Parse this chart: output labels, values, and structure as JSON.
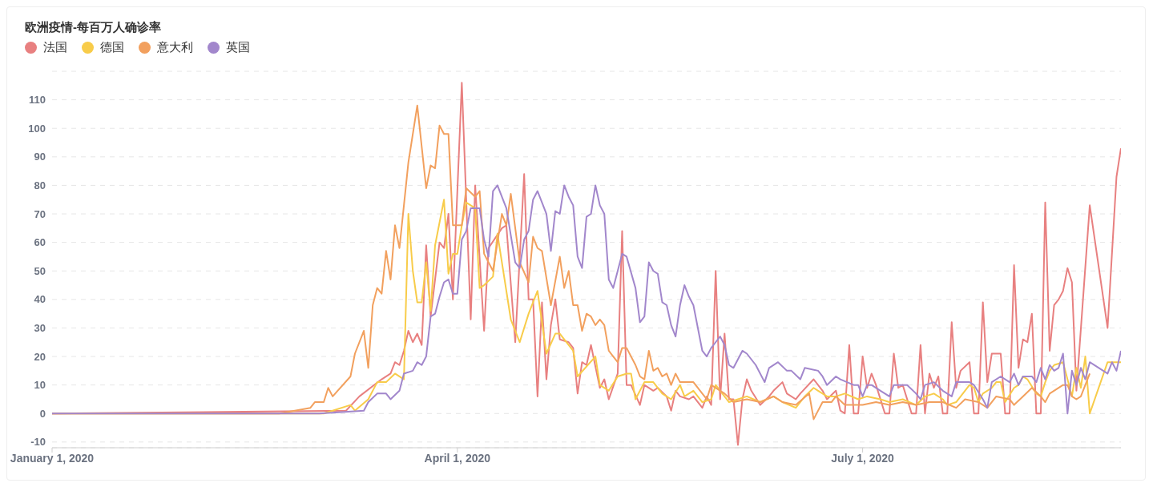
{
  "chart_data": {
    "type": "line",
    "title": "欧洲疫情-每百万人确诊率",
    "legend": "top left",
    "grid": "y",
    "marker": "none",
    "line_style": "solid",
    "xlim": [
      "2020-01-01",
      "2020-08-28"
    ],
    "xticks": [
      {
        "value": "2020-01-01",
        "label": "January 1, 2020"
      },
      {
        "value": "2020-04-01",
        "label": "April 1, 2020"
      },
      {
        "value": "2020-07-01",
        "label": "July 1, 2020"
      }
    ],
    "ylim": [
      -12,
      120
    ],
    "yticks": [
      -10,
      0,
      10,
      20,
      30,
      40,
      50,
      60,
      70,
      80,
      90,
      100,
      110
    ],
    "series": [
      {
        "name": "法国",
        "color": "#e88080",
        "x": [
          "2020-01-01",
          "2020-03-07",
          "2020-03-10",
          "2020-03-15",
          "2020-03-17",
          "2020-03-18",
          "2020-03-19",
          "2020-03-20",
          "2020-03-21",
          "2020-03-22",
          "2020-03-23",
          "2020-03-24",
          "2020-03-25",
          "2020-03-26",
          "2020-03-28",
          "2020-03-29",
          "2020-03-30",
          "2020-03-31",
          "2020-04-02",
          "2020-04-04",
          "2020-04-05",
          "2020-04-07",
          "2020-04-08",
          "2020-04-11",
          "2020-04-12",
          "2020-04-14",
          "2020-04-16",
          "2020-04-17",
          "2020-04-18",
          "2020-04-19",
          "2020-04-20",
          "2020-04-21",
          "2020-04-22",
          "2020-04-23",
          "2020-04-24",
          "2020-04-26",
          "2020-04-27",
          "2020-04-28",
          "2020-04-29",
          "2020-04-30",
          "2020-05-01",
          "2020-05-03",
          "2020-05-04",
          "2020-05-05",
          "2020-05-07",
          "2020-05-08",
          "2020-05-09",
          "2020-05-10",
          "2020-05-12",
          "2020-05-13",
          "2020-05-15",
          "2020-05-16",
          "2020-05-18",
          "2020-05-19",
          "2020-05-20",
          "2020-05-21",
          "2020-05-23",
          "2020-05-24",
          "2020-05-26",
          "2020-05-27",
          "2020-05-28",
          "2020-05-29",
          "2020-05-30",
          "2020-05-31",
          "2020-06-01",
          "2020-06-02",
          "2020-06-03",
          "2020-06-04",
          "2020-06-05",
          "2020-06-06",
          "2020-06-08",
          "2020-06-10",
          "2020-06-11",
          "2020-06-13",
          "2020-06-14",
          "2020-06-16",
          "2020-06-17",
          "2020-06-20",
          "2020-06-22",
          "2020-06-23",
          "2020-06-25",
          "2020-06-26",
          "2020-06-27",
          "2020-06-28",
          "2020-06-29",
          "2020-06-30",
          "2020-07-01",
          "2020-07-02",
          "2020-07-03",
          "2020-07-04",
          "2020-07-06",
          "2020-07-07",
          "2020-07-08",
          "2020-07-09",
          "2020-07-10",
          "2020-07-12",
          "2020-07-13",
          "2020-07-14",
          "2020-07-15",
          "2020-07-16",
          "2020-07-17",
          "2020-07-18",
          "2020-07-19",
          "2020-07-20",
          "2020-07-21",
          "2020-07-22",
          "2020-07-23",
          "2020-07-25",
          "2020-07-26",
          "2020-07-27",
          "2020-07-28",
          "2020-07-29",
          "2020-07-30",
          "2020-08-01",
          "2020-08-02",
          "2020-08-03",
          "2020-08-04",
          "2020-08-05",
          "2020-08-06",
          "2020-08-07",
          "2020-08-08",
          "2020-08-09",
          "2020-08-10",
          "2020-08-11",
          "2020-08-12",
          "2020-08-13",
          "2020-08-14",
          "2020-08-15",
          "2020-08-16",
          "2020-08-17",
          "2020-08-18",
          "2020-08-21",
          "2020-08-25",
          "2020-08-27",
          "2020-08-28"
        ],
        "values": [
          0,
          1,
          6,
          12,
          14,
          18,
          17,
          22,
          29,
          25,
          28,
          24,
          59,
          34,
          60,
          58,
          70,
          40,
          116,
          33,
          80,
          29,
          58,
          65,
          66,
          25,
          84,
          40,
          40,
          6,
          39,
          12,
          31,
          40,
          26,
          25,
          23,
          7,
          18,
          17,
          24,
          9,
          12,
          5,
          14,
          64,
          10,
          10,
          3,
          10,
          8,
          9,
          6,
          1,
          8,
          6,
          5,
          6,
          2,
          6,
          3,
          50,
          5,
          28,
          5,
          5,
          -11,
          5,
          12,
          8,
          3,
          6,
          8,
          11,
          7,
          5,
          7,
          12,
          8,
          5,
          8,
          1,
          0,
          24,
          0,
          0,
          20,
          9,
          14,
          10,
          0,
          0,
          21,
          9,
          10,
          0,
          0,
          24,
          0,
          14,
          9,
          13,
          0,
          0,
          32,
          9,
          15,
          18,
          0,
          0,
          39,
          11,
          21,
          21,
          0,
          0,
          52,
          16,
          26,
          25,
          35,
          0,
          0,
          74,
          22,
          38,
          40,
          43,
          51,
          46,
          8,
          73,
          30,
          83,
          93
        ]
      },
      {
        "name": "德国",
        "color": "#f8cc4a",
        "x": [
          "2020-01-01",
          "2020-03-02",
          "2020-03-08",
          "2020-03-09",
          "2020-03-12",
          "2020-03-14",
          "2020-03-16",
          "2020-03-18",
          "2020-03-20",
          "2020-03-21",
          "2020-03-22",
          "2020-03-23",
          "2020-03-24",
          "2020-03-25",
          "2020-03-26",
          "2020-03-27",
          "2020-03-29",
          "2020-03-30",
          "2020-03-31",
          "2020-04-01",
          "2020-04-02",
          "2020-04-03",
          "2020-04-04",
          "2020-04-05",
          "2020-04-06",
          "2020-04-07",
          "2020-04-09",
          "2020-04-10",
          "2020-04-13",
          "2020-04-15",
          "2020-04-17",
          "2020-04-19",
          "2020-04-21",
          "2020-04-23",
          "2020-04-24",
          "2020-04-27",
          "2020-04-28",
          "2020-05-02",
          "2020-05-03",
          "2020-05-05",
          "2020-05-07",
          "2020-05-09",
          "2020-05-10",
          "2020-05-11",
          "2020-05-13",
          "2020-05-15",
          "2020-05-17",
          "2020-05-19",
          "2020-05-21",
          "2020-05-22",
          "2020-05-24",
          "2020-05-26",
          "2020-05-28",
          "2020-05-29",
          "2020-06-01",
          "2020-06-03",
          "2020-06-05",
          "2020-06-08",
          "2020-06-11",
          "2020-06-13",
          "2020-06-16",
          "2020-06-18",
          "2020-06-20",
          "2020-06-21",
          "2020-06-23",
          "2020-06-25",
          "2020-06-27",
          "2020-06-30",
          "2020-07-02",
          "2020-07-05",
          "2020-07-07",
          "2020-07-10",
          "2020-07-13",
          "2020-07-15",
          "2020-07-17",
          "2020-07-19",
          "2020-07-20",
          "2020-07-22",
          "2020-07-25",
          "2020-07-26",
          "2020-07-27",
          "2020-07-28",
          "2020-07-30",
          "2020-07-31",
          "2020-08-01",
          "2020-08-02",
          "2020-08-04",
          "2020-08-05",
          "2020-08-06",
          "2020-08-07",
          "2020-08-09",
          "2020-08-10",
          "2020-08-11",
          "2020-08-12",
          "2020-08-13",
          "2020-08-15",
          "2020-08-16",
          "2020-08-17",
          "2020-08-18",
          "2020-08-19",
          "2020-08-20",
          "2020-08-21",
          "2020-08-25",
          "2020-08-27",
          "2020-08-28"
        ],
        "values": [
          0,
          0,
          3,
          1,
          5,
          11,
          11,
          14,
          12,
          70,
          50,
          39,
          39,
          53,
          36,
          59,
          75,
          49,
          56,
          56,
          66,
          74,
          73,
          72,
          44,
          45,
          48,
          63,
          33,
          25,
          35,
          43,
          21,
          28,
          28,
          22,
          13,
          20,
          10,
          8,
          13,
          14,
          14,
          5,
          11,
          11,
          7,
          5,
          10,
          6,
          8,
          4,
          5,
          10,
          4,
          5,
          6,
          4,
          6,
          4,
          2,
          6,
          9,
          8,
          6,
          6,
          7,
          5,
          6,
          5,
          4,
          5,
          3,
          6,
          7,
          5,
          3,
          4,
          10,
          9,
          4,
          7,
          9,
          11,
          11,
          4,
          9,
          10,
          13,
          12,
          7,
          6,
          11,
          15,
          17,
          18,
          12,
          6,
          16,
          9,
          20,
          0,
          18,
          18,
          18
        ]
      },
      {
        "name": "意大利",
        "color": "#f2a05e",
        "x": [
          "2020-01-01",
          "2020-02-21",
          "2020-02-28",
          "2020-02-29",
          "2020-03-02",
          "2020-03-03",
          "2020-03-04",
          "2020-03-08",
          "2020-03-09",
          "2020-03-11",
          "2020-03-12",
          "2020-03-13",
          "2020-03-14",
          "2020-03-15",
          "2020-03-16",
          "2020-03-17",
          "2020-03-18",
          "2020-03-19",
          "2020-03-21",
          "2020-03-23",
          "2020-03-25",
          "2020-03-26",
          "2020-03-27",
          "2020-03-28",
          "2020-03-29",
          "2020-03-30",
          "2020-03-31",
          "2020-04-02",
          "2020-04-03",
          "2020-04-05",
          "2020-04-06",
          "2020-04-07",
          "2020-04-09",
          "2020-04-11",
          "2020-04-12",
          "2020-04-13",
          "2020-04-15",
          "2020-04-17",
          "2020-04-18",
          "2020-04-19",
          "2020-04-20",
          "2020-04-22",
          "2020-04-24",
          "2020-04-25",
          "2020-04-26",
          "2020-04-27",
          "2020-04-28",
          "2020-04-29",
          "2020-04-30",
          "2020-05-01",
          "2020-05-02",
          "2020-05-03",
          "2020-05-04",
          "2020-05-05",
          "2020-05-07",
          "2020-05-08",
          "2020-05-09",
          "2020-05-11",
          "2020-05-12",
          "2020-05-13",
          "2020-05-14",
          "2020-05-15",
          "2020-05-16",
          "2020-05-17",
          "2020-05-18",
          "2020-05-19",
          "2020-05-20",
          "2020-05-21",
          "2020-05-24",
          "2020-05-26",
          "2020-05-27",
          "2020-05-28",
          "2020-05-31",
          "2020-06-02",
          "2020-06-05",
          "2020-06-08",
          "2020-06-11",
          "2020-06-13",
          "2020-06-16",
          "2020-06-19",
          "2020-06-20",
          "2020-06-22",
          "2020-06-24",
          "2020-06-25",
          "2020-06-27",
          "2020-07-01",
          "2020-07-04",
          "2020-07-07",
          "2020-07-10",
          "2020-07-13",
          "2020-07-16",
          "2020-07-19",
          "2020-07-22",
          "2020-07-24",
          "2020-07-27",
          "2020-07-29",
          "2020-07-31",
          "2020-08-03",
          "2020-08-04",
          "2020-08-06",
          "2020-08-08",
          "2020-08-10",
          "2020-08-11",
          "2020-08-12",
          "2020-08-15",
          "2020-08-16",
          "2020-08-17",
          "2020-08-18",
          "2020-08-19",
          "2020-08-21"
        ],
        "values": [
          0,
          0,
          2,
          4,
          4,
          9,
          6,
          13,
          21,
          29,
          16,
          38,
          44,
          42,
          57,
          47,
          66,
          58,
          88,
          108,
          79,
          87,
          86,
          101,
          98,
          98,
          66,
          66,
          79,
          76,
          78,
          56,
          50,
          70,
          66,
          77,
          53,
          46,
          62,
          58,
          57,
          38,
          55,
          44,
          50,
          38,
          38,
          29,
          35,
          34,
          31,
          33,
          31,
          22,
          18,
          23,
          23,
          17,
          13,
          12,
          22,
          15,
          16,
          13,
          14,
          10,
          14,
          11,
          11,
          7,
          5,
          10,
          7,
          4,
          5,
          4,
          6,
          4,
          3,
          7,
          -2,
          4,
          4,
          6,
          3,
          3,
          4,
          3,
          4,
          3,
          4,
          4,
          2,
          5,
          4,
          2,
          6,
          5,
          3,
          6,
          9,
          6,
          4,
          7,
          10,
          10,
          6,
          5,
          6,
          14
        ]
      },
      {
        "name": "英国",
        "color": "#a287cc",
        "x": [
          "2020-01-01",
          "2020-03-01",
          "2020-03-11",
          "2020-03-12",
          "2020-03-14",
          "2020-03-16",
          "2020-03-17",
          "2020-03-19",
          "2020-03-20",
          "2020-03-22",
          "2020-03-23",
          "2020-03-24",
          "2020-03-25",
          "2020-03-26",
          "2020-03-27",
          "2020-03-28",
          "2020-03-29",
          "2020-03-30",
          "2020-03-31",
          "2020-04-01",
          "2020-04-02",
          "2020-04-03",
          "2020-04-04",
          "2020-04-05",
          "2020-04-06",
          "2020-04-07",
          "2020-04-08",
          "2020-04-09",
          "2020-04-10",
          "2020-04-12",
          "2020-04-14",
          "2020-04-15",
          "2020-04-16",
          "2020-04-17",
          "2020-04-18",
          "2020-04-19",
          "2020-04-21",
          "2020-04-22",
          "2020-04-23",
          "2020-04-24",
          "2020-04-25",
          "2020-04-26",
          "2020-04-27",
          "2020-04-28",
          "2020-04-29",
          "2020-04-30",
          "2020-05-01",
          "2020-05-02",
          "2020-05-03",
          "2020-05-04",
          "2020-05-05",
          "2020-05-06",
          "2020-05-08",
          "2020-05-09",
          "2020-05-11",
          "2020-05-12",
          "2020-05-13",
          "2020-05-14",
          "2020-05-15",
          "2020-05-16",
          "2020-05-17",
          "2020-05-18",
          "2020-05-19",
          "2020-05-20",
          "2020-05-21",
          "2020-05-22",
          "2020-05-23",
          "2020-05-24",
          "2020-05-26",
          "2020-05-27",
          "2020-05-28",
          "2020-05-29",
          "2020-05-30",
          "2020-05-31",
          "2020-06-01",
          "2020-06-02",
          "2020-06-04",
          "2020-06-05",
          "2020-06-07",
          "2020-06-09",
          "2020-06-10",
          "2020-06-12",
          "2020-06-14",
          "2020-06-15",
          "2020-06-17",
          "2020-06-18",
          "2020-06-21",
          "2020-06-22",
          "2020-06-23",
          "2020-06-25",
          "2020-06-26",
          "2020-06-29",
          "2020-06-30",
          "2020-07-01",
          "2020-07-02",
          "2020-07-03",
          "2020-07-05",
          "2020-07-07",
          "2020-07-08",
          "2020-07-09",
          "2020-07-11",
          "2020-07-13",
          "2020-07-14",
          "2020-07-15",
          "2020-07-17",
          "2020-07-19",
          "2020-07-21",
          "2020-07-22",
          "2020-07-25",
          "2020-07-26",
          "2020-07-28",
          "2020-07-29",
          "2020-07-30",
          "2020-08-01",
          "2020-08-03",
          "2020-08-04",
          "2020-08-05",
          "2020-08-06",
          "2020-08-08",
          "2020-08-09",
          "2020-08-10",
          "2020-08-11",
          "2020-08-12",
          "2020-08-13",
          "2020-08-14",
          "2020-08-15",
          "2020-08-16",
          "2020-08-17",
          "2020-08-18",
          "2020-08-19",
          "2020-08-20",
          "2020-08-21",
          "2020-08-25",
          "2020-08-26",
          "2020-08-27",
          "2020-08-28"
        ],
        "values": [
          0,
          0,
          1,
          4,
          7,
          7,
          5,
          8,
          14,
          15,
          18,
          17,
          20,
          34,
          35,
          41,
          46,
          47,
          42,
          42,
          61,
          64,
          72,
          72,
          72,
          61,
          55,
          78,
          80,
          72,
          53,
          51,
          61,
          64,
          75,
          78,
          70,
          57,
          71,
          70,
          80,
          76,
          73,
          55,
          51,
          69,
          70,
          80,
          73,
          70,
          47,
          44,
          56,
          55,
          44,
          32,
          34,
          53,
          50,
          49,
          39,
          38,
          31,
          27,
          38,
          45,
          41,
          38,
          22,
          20,
          23,
          25,
          27,
          24,
          17,
          16,
          22,
          21,
          17,
          11,
          16,
          18,
          15,
          15,
          12,
          16,
          15,
          13,
          10,
          13,
          12,
          10,
          10,
          6,
          10,
          10,
          8,
          6,
          10,
          10,
          10,
          7,
          5,
          10,
          11,
          8,
          6,
          11,
          11,
          10,
          5,
          2,
          11,
          13,
          11,
          14,
          10,
          13,
          13,
          11,
          16,
          12,
          17,
          15,
          16,
          21,
          0,
          15,
          10,
          16,
          12,
          18,
          14,
          18,
          15,
          22
        ]
      }
    ]
  }
}
